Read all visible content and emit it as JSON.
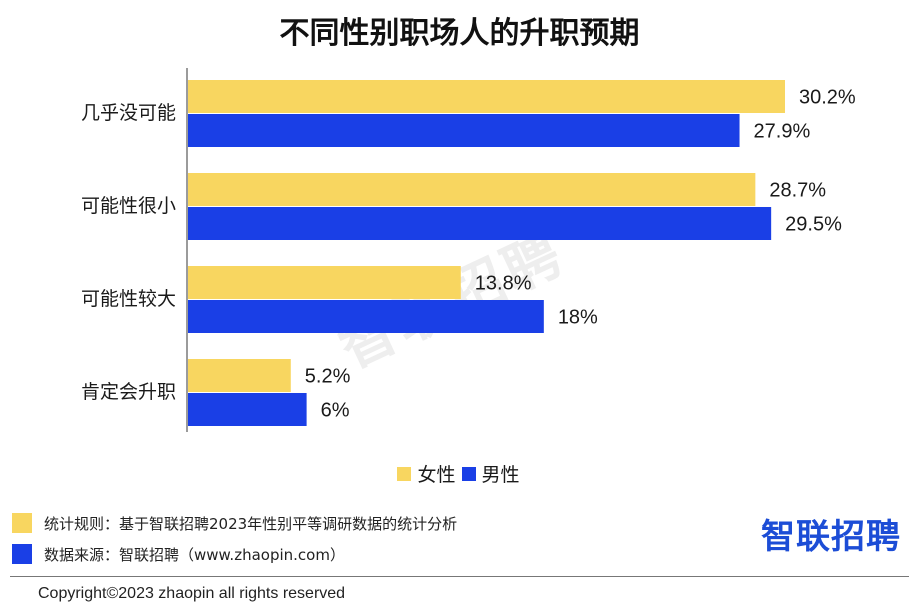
{
  "title": "不同性别职场人的升职预期",
  "colors": {
    "female": "#F8D660",
    "male": "#1A3FE6",
    "axis": "#7a7a7a",
    "brand": "#1C4DD6"
  },
  "chart_data": {
    "type": "bar",
    "orientation": "horizontal",
    "title": "不同性别职场人的升职预期",
    "categories": [
      "几乎没可能",
      "可能性很小",
      "可能性较大",
      "肯定会升职"
    ],
    "series": [
      {
        "name": "女性",
        "values": [
          30.2,
          28.7,
          13.8,
          5.2
        ],
        "labels": [
          "30.2%",
          "28.7%",
          "13.8%",
          "5.2%"
        ]
      },
      {
        "name": "男性",
        "values": [
          27.9,
          29.5,
          18,
          6
        ],
        "labels": [
          "27.9%",
          "29.5%",
          "18%",
          "6%"
        ]
      }
    ],
    "xlim": [
      0,
      35
    ],
    "grid": false,
    "legend": "bottom-center"
  },
  "legend": {
    "female": "女性",
    "male": "男性"
  },
  "watermark": "智联招聘",
  "notes": {
    "rule": "统计规则：基于智联招聘2023年性别平等调研数据的统计分析",
    "source": "数据来源：智联招聘（www.zhaopin.com）"
  },
  "brand": "智联招聘",
  "copyright": "Copyright©2023 zhaopin all rights reserved"
}
